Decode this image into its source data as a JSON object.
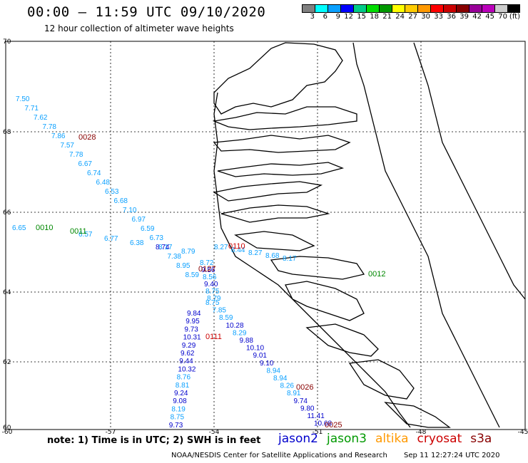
{
  "header": {
    "title": "00:00 – 11:59 UTC 09/10/2020",
    "subtitle": "12 hour collection of altimeter wave heights"
  },
  "legend": {
    "colors": [
      "#808080",
      "#00ffff",
      "#0aa0ff",
      "#0000ff",
      "#00cc88",
      "#00dd00",
      "#009900",
      "#ffff00",
      "#ffcc00",
      "#ff9900",
      "#ff0000",
      "#cc0000",
      "#880000",
      "#990099",
      "#bb00bb",
      "#cccccc",
      "#000000"
    ],
    "labels": [
      "3",
      "6",
      "9",
      "12",
      "15",
      "18",
      "21",
      "24",
      "27",
      "30",
      "33",
      "36",
      "39",
      "42",
      "45",
      "70",
      "(ft)"
    ]
  },
  "axes": {
    "lat_labels": [
      "70",
      "68",
      "66",
      "64",
      "62",
      "60"
    ],
    "lon_labels": [
      "-60",
      "-57",
      "-54",
      "-51",
      "-48",
      "-45"
    ]
  },
  "map_data": {
    "tracks": [
      {
        "satellite": "jason3",
        "time": "0028",
        "time_color": "#880000",
        "readings": [
          {
            "v": "7.50",
            "c": "#0aa0ff"
          },
          {
            "v": "7.71",
            "c": "#0aa0ff"
          },
          {
            "v": "7.62",
            "c": "#0aa0ff"
          },
          {
            "v": "7.78",
            "c": "#0aa0ff"
          },
          {
            "v": "7.86",
            "c": "#0aa0ff"
          },
          {
            "v": "7.57",
            "c": "#0aa0ff"
          },
          {
            "v": "7.78",
            "c": "#0aa0ff"
          },
          {
            "v": "6.67",
            "c": "#0aa0ff"
          },
          {
            "v": "6.74",
            "c": "#0aa0ff"
          },
          {
            "v": "6.48",
            "c": "#0aa0ff"
          },
          {
            "v": "6.53",
            "c": "#0aa0ff"
          },
          {
            "v": "6.68",
            "c": "#0aa0ff"
          },
          {
            "v": "7.10",
            "c": "#0aa0ff"
          },
          {
            "v": "6.97",
            "c": "#0aa0ff"
          },
          {
            "v": "6.59",
            "c": "#0aa0ff"
          },
          {
            "v": "6.73",
            "c": "#0aa0ff"
          },
          {
            "v": "8.17",
            "c": "#0aa0ff"
          },
          {
            "v": "7.38",
            "c": "#0aa0ff"
          },
          {
            "v": "8.95",
            "c": "#0aa0ff"
          },
          {
            "v": "8.59",
            "c": "#0aa0ff"
          }
        ]
      },
      {
        "satellite": "jason3",
        "time": "0010",
        "time_color": "#008800",
        "readings": [
          {
            "v": "6.65",
            "c": "#0aa0ff"
          }
        ]
      },
      {
        "satellite": "jason3",
        "time": "0011",
        "time_color": "#008800",
        "readings": [
          {
            "v": "6.57",
            "c": "#0aa0ff"
          },
          {
            "v": "6.77",
            "c": "#0aa0ff"
          },
          {
            "v": "6.38",
            "c": "#0aa0ff"
          },
          {
            "v": "8.74",
            "c": "#0000cc"
          },
          {
            "v": "8.79",
            "c": "#0aa0ff"
          }
        ]
      },
      {
        "satellite": "jason2",
        "time": "0111",
        "time_color": "#cc0000",
        "readings": [
          {
            "v": "9.84",
            "c": "#0000cc"
          },
          {
            "v": "9.95",
            "c": "#0000cc"
          },
          {
            "v": "9.73",
            "c": "#0000cc"
          },
          {
            "v": "10.31",
            "c": "#0000cc"
          },
          {
            "v": "9.29",
            "c": "#0000cc"
          },
          {
            "v": "9.62",
            "c": "#0000cc"
          },
          {
            "v": "9.44",
            "c": "#0000cc"
          },
          {
            "v": "10.32",
            "c": "#0000cc"
          },
          {
            "v": "8.76",
            "c": "#0aa0ff"
          },
          {
            "v": "8.81",
            "c": "#0aa0ff"
          },
          {
            "v": "9.24",
            "c": "#0000cc"
          },
          {
            "v": "9.08",
            "c": "#0000cc"
          },
          {
            "v": "8.19",
            "c": "#0aa0ff"
          },
          {
            "v": "8.75",
            "c": "#0aa0ff"
          },
          {
            "v": "9.73",
            "c": "#0000cc"
          }
        ]
      },
      {
        "satellite": "jason2",
        "time": "0026",
        "time_color": "#880000",
        "readings": [
          {
            "v": "8.75",
            "c": "#0aa0ff"
          },
          {
            "v": "7.85",
            "c": "#0aa0ff"
          },
          {
            "v": "8.59",
            "c": "#0aa0ff"
          },
          {
            "v": "10.28",
            "c": "#0000cc"
          },
          {
            "v": "8.29",
            "c": "#0aa0ff"
          },
          {
            "v": "9.88",
            "c": "#0000cc"
          },
          {
            "v": "10.10",
            "c": "#0000cc"
          },
          {
            "v": "9.01",
            "c": "#0000cc"
          },
          {
            "v": "9.10",
            "c": "#0000cc"
          },
          {
            "v": "8.94",
            "c": "#0aa0ff"
          },
          {
            "v": "8.94",
            "c": "#0aa0ff"
          },
          {
            "v": "8.26",
            "c": "#0aa0ff"
          },
          {
            "v": "8.91",
            "c": "#0aa0ff"
          },
          {
            "v": "9.74",
            "c": "#0000cc"
          },
          {
            "v": "9.80",
            "c": "#0000cc"
          },
          {
            "v": "11.41",
            "c": "#0000cc"
          },
          {
            "v": "10.68",
            "c": "#0000cc"
          }
        ]
      },
      {
        "satellite": "cryosat",
        "time": "0110",
        "time_color": "#cc0000",
        "readings": [
          {
            "v": "8.27",
            "c": "#0aa0ff"
          },
          {
            "v": "8.44",
            "c": "#0aa0ff"
          },
          {
            "v": "8.27",
            "c": "#0aa0ff"
          },
          {
            "v": "8.68",
            "c": "#0aa0ff"
          },
          {
            "v": "8.17",
            "c": "#0aa0ff"
          }
        ]
      },
      {
        "satellite": "jason3",
        "time": "0012",
        "time_color": "#008800",
        "readings": []
      },
      {
        "satellite": "s3a",
        "time": "0127",
        "time_color": "#880000",
        "readings": [
          {
            "v": "8.72",
            "c": "#0aa0ff"
          },
          {
            "v": "9.56",
            "c": "#0000cc"
          },
          {
            "v": "8.56",
            "c": "#0aa0ff"
          },
          {
            "v": "9.40",
            "c": "#0000cc"
          },
          {
            "v": "8.75",
            "c": "#0aa0ff"
          },
          {
            "v": "8.79",
            "c": "#0aa0ff"
          }
        ]
      },
      {
        "satellite": "s3a",
        "time": "0025",
        "time_color": "#880000",
        "readings": []
      }
    ]
  },
  "footer": {
    "note": "note: 1) Time is in UTC; 2) SWH is in feet",
    "satellites": [
      {
        "name": "jason2",
        "color": "#0000cc"
      },
      {
        "name": "jason3",
        "color": "#009900"
      },
      {
        "name": "altika",
        "color": "#ff9900"
      },
      {
        "name": "cryosat",
        "color": "#cc0000"
      },
      {
        "name": "s3a",
        "color": "#880000"
      }
    ],
    "credit": "NOAA/NESDIS Center for Satellite Applications and Research",
    "timestamp": "Sep 11 12:27:24 UTC 2020"
  }
}
